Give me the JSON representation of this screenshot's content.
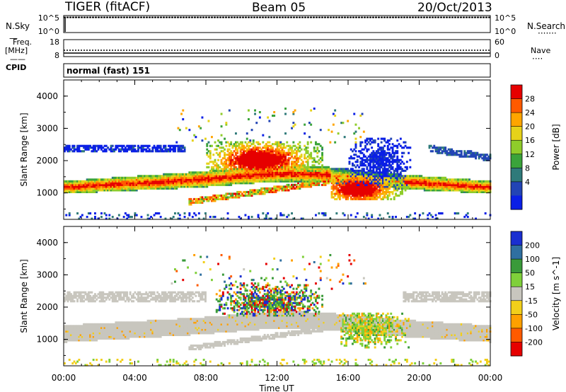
{
  "header": {
    "radar": "TIGER (fitACF)",
    "beam": "Beam 05",
    "date": "20/Oct/2013"
  },
  "aux_panels": {
    "nsky_label": "N.Sky",
    "nsearch_label": "N.Search",
    "nsky_ticks": [
      "10^5",
      "10^0"
    ],
    "freq_label": "Freq.",
    "freq_unit": "[MHz]",
    "freq_ticks": [
      "18",
      "8"
    ],
    "nave_label": "Nave",
    "nave_ticks": [
      "60",
      "0"
    ],
    "cpid_label": "CPID",
    "cpid_text": "normal (fast) 151"
  },
  "chart_data": [
    {
      "type": "heatmap",
      "panel": "power",
      "ylabel": "Slant Range [km]",
      "yticks": [
        "1000",
        "2000",
        "3000",
        "4000"
      ],
      "ylim": [
        180,
        4500
      ],
      "xlim": [
        0,
        24
      ],
      "colorbar": {
        "label": "Power [dB]",
        "ticks": [
          "4",
          "8",
          "12",
          "16",
          "20",
          "24",
          "28"
        ],
        "colors": [
          "#0a1fe6",
          "#2244b5",
          "#2f7a7a",
          "#3aa33a",
          "#8fcc2a",
          "#e6d21a",
          "#ffa500",
          "#ff5a00",
          "#e60000"
        ]
      },
      "regions": [
        {
          "name": "main band",
          "t": [
            0,
            24
          ],
          "r": [
            900,
            1500
          ],
          "level": "strong"
        },
        {
          "name": "upper band",
          "t": [
            0,
            6.5
          ],
          "r": [
            2250,
            2450
          ],
          "level": "weak"
        },
        {
          "name": "upper band late",
          "t": [
            20.5,
            24
          ],
          "r": [
            2050,
            2450
          ],
          "level": "weak"
        },
        {
          "name": "midday echo",
          "t": [
            8,
            14.5
          ],
          "r": [
            1700,
            2600
          ],
          "level": "strong"
        },
        {
          "name": "lower patch",
          "t": [
            15,
            19
          ],
          "r": [
            700,
            1500
          ],
          "level": "strong"
        },
        {
          "name": "afternoon blue",
          "t": [
            16,
            19.5
          ],
          "r": [
            1200,
            2600
          ],
          "level": "weak"
        }
      ]
    },
    {
      "type": "heatmap",
      "panel": "velocity",
      "ylabel": "Slant Range [km]",
      "yticks": [
        "1000",
        "2000",
        "3000",
        "4000"
      ],
      "ylim": [
        180,
        4500
      ],
      "xlim": [
        0,
        24
      ],
      "xticks": [
        "00:00",
        "04:00",
        "08:00",
        "12:00",
        "16:00",
        "20:00",
        "00:00"
      ],
      "xlabel": "Time UT",
      "colorbar": {
        "label": "Velocity [m s^-1]",
        "ticks": [
          "200",
          "100",
          "50",
          "15",
          "-15",
          "-50",
          "-100",
          "-200"
        ],
        "colors": [
          "#1a2fd0",
          "#2f6fa0",
          "#3a9a3a",
          "#7fd03a",
          "#c8c6be",
          "#f2cf1a",
          "#ffa000",
          "#ff5a00",
          "#e60000"
        ]
      },
      "regions": [
        {
          "name": "ground scatter band",
          "t": [
            0,
            24
          ],
          "r": [
            900,
            1600
          ],
          "level": "low velocity"
        },
        {
          "name": "upper ground scatter",
          "t": [
            0,
            24
          ],
          "r": [
            2100,
            2450
          ],
          "level": "low velocity"
        },
        {
          "name": "midday flow",
          "t": [
            8.5,
            14.5
          ],
          "r": [
            1700,
            2900
          ],
          "level": "mixed"
        },
        {
          "name": "afternoon flow",
          "t": [
            15.5,
            19.5
          ],
          "r": [
            700,
            1700
          ],
          "level": "mixed"
        }
      ]
    }
  ]
}
